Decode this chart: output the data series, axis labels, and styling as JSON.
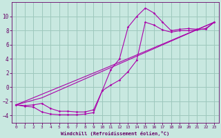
{
  "xlabel": "Windchill (Refroidissement éolien,°C)",
  "background_color": "#c8e8e0",
  "grid_color": "#9dc8bc",
  "line_color": "#aa00aa",
  "xlim": [
    -0.5,
    23.5
  ],
  "ylim": [
    -5,
    12
  ],
  "xticks": [
    0,
    1,
    2,
    3,
    4,
    5,
    6,
    7,
    8,
    9,
    10,
    11,
    12,
    13,
    14,
    15,
    16,
    17,
    18,
    19,
    20,
    21,
    22,
    23
  ],
  "yticks": [
    -4,
    -2,
    0,
    2,
    4,
    6,
    8,
    10
  ],
  "series1_x": [
    0,
    1,
    2,
    3,
    4,
    5,
    6,
    7,
    8,
    9,
    10,
    11,
    12,
    13,
    14,
    15,
    16,
    17,
    18,
    19,
    20,
    21,
    22,
    23
  ],
  "series1_y": [
    -2.5,
    -2.7,
    -2.8,
    -3.5,
    -3.8,
    -3.9,
    -3.9,
    -3.9,
    -3.8,
    -3.6,
    -0.5,
    2.5,
    4.0,
    8.5,
    10.0,
    11.2,
    10.5,
    9.2,
    8.0,
    8.2,
    8.3,
    8.2,
    8.2,
    9.2
  ],
  "series2_x": [
    0,
    1,
    2,
    3,
    4,
    5,
    6,
    7,
    8,
    9,
    10,
    11,
    12,
    13,
    14,
    15,
    16,
    17,
    18,
    19,
    20,
    21,
    22,
    23
  ],
  "series2_y": [
    -2.5,
    -2.6,
    -2.5,
    -2.3,
    -3.0,
    -3.4,
    -3.4,
    -3.5,
    -3.5,
    -3.2,
    -0.5,
    0.3,
    1.0,
    2.2,
    3.8,
    9.2,
    8.8,
    8.1,
    7.8,
    8.0,
    8.0,
    8.1,
    8.3,
    9.2
  ],
  "series3_x": [
    0,
    3,
    23
  ],
  "series3_y": [
    -2.5,
    -1.5,
    9.2
  ],
  "series4_x": [
    0,
    10,
    23
  ],
  "series4_y": [
    -2.5,
    2.5,
    9.2
  ]
}
